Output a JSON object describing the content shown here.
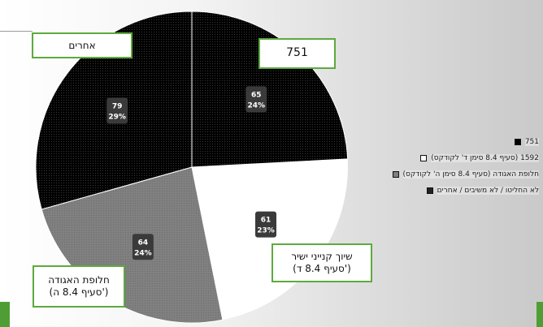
{
  "colors": {
    "accent_green": "#5ea93e",
    "slice_fills": [
      "#000000",
      "#ffffff",
      "#7f7f7f",
      "#1a1a1a"
    ]
  },
  "chart_data": {
    "type": "pie",
    "title": "",
    "slices": [
      {
        "label": "751",
        "value": 65,
        "percent": "24%"
      },
      {
        "label": "1592 (סעיף 8.4 סימן ד' לקודקס)",
        "value": 61,
        "percent": "23%"
      },
      {
        "label": "חלופת האגודה (סעיף 8.4 סימן ה' לקודקס)",
        "value": 64,
        "percent": "24%"
      },
      {
        "label": "לא החליטו / לא משיבים / אחרים",
        "value": 79,
        "percent": "29%"
      }
    ],
    "legend_position": "right"
  },
  "callouts": {
    "top_right": "751",
    "top_left": "אחרים",
    "bottom_right": "שיוך קנייני ישיר\n(סעיף 8.4 ד')",
    "bottom_left": "חלופת האגודה\n(סעיף 8.4 ה')"
  }
}
